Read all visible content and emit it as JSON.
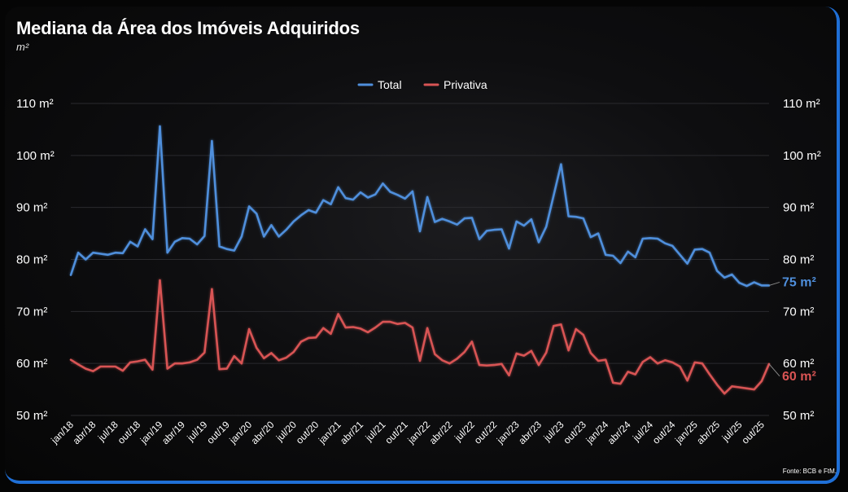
{
  "title": "Mediana da Área dos Imóveis Adquiridos",
  "subtitle": "m²",
  "source": "Fonte: BCB e FtM.",
  "chart_data": {
    "type": "line",
    "ylim": [
      50,
      110
    ],
    "y_ticks": [
      50,
      60,
      70,
      80,
      90,
      100,
      110
    ],
    "y_tick_suffix": " m²",
    "legend_position": "top-center",
    "x": [
      "jan/18",
      "fev/18",
      "mar/18",
      "abr/18",
      "mai/18",
      "jun/18",
      "jul/18",
      "ago/18",
      "set/18",
      "out/18",
      "nov/18",
      "dez/18",
      "jan/19",
      "fev/19",
      "mar/19",
      "abr/19",
      "mai/19",
      "jun/19",
      "jul/19",
      "ago/19",
      "set/19",
      "out/19",
      "nov/19",
      "dez/19",
      "jan/20",
      "fev/20",
      "mar/20",
      "abr/20",
      "mai/20",
      "jun/20",
      "jul/20",
      "ago/20",
      "set/20",
      "out/20",
      "nov/20",
      "dez/20",
      "jan/21",
      "fev/21",
      "mar/21",
      "abr/21",
      "mai/21",
      "jun/21",
      "jul/21",
      "ago/21",
      "set/21",
      "out/21",
      "nov/21",
      "dez/21",
      "jan/22",
      "fev/22",
      "mar/22",
      "abr/22",
      "mai/22",
      "jun/22",
      "jul/22",
      "ago/22",
      "set/22",
      "out/22",
      "nov/22",
      "dez/22",
      "jan/23",
      "fev/23",
      "mar/23",
      "abr/23",
      "mai/23",
      "jun/23",
      "jul/23",
      "ago/23",
      "set/23",
      "out/23",
      "nov/23",
      "dez/23",
      "jan/24",
      "fev/24",
      "mar/24",
      "abr/24",
      "mai/24",
      "jun/24",
      "jul/24",
      "ago/24",
      "set/24",
      "out/24",
      "nov/24",
      "dez/24",
      "jan/25",
      "fev/25",
      "mar/25",
      "abr/25",
      "mai/25",
      "jun/25",
      "jul/25",
      "ago/25",
      "set/25",
      "out/25",
      "nov/25"
    ],
    "x_tick_labels": [
      "jan/18",
      "abr/18",
      "jul/18",
      "out/18",
      "jan/19",
      "abr/19",
      "jul/19",
      "out/19",
      "jan/20",
      "abr/20",
      "jul/20",
      "out/20",
      "jan/21",
      "abr/21",
      "jul/21",
      "out/21",
      "jan/22",
      "abr/22",
      "jul/22",
      "out/22",
      "jan/23",
      "abr/23",
      "jul/23",
      "out/23",
      "jan/24",
      "abr/24",
      "jul/24",
      "out/24",
      "jan/25",
      "abr/25",
      "jul/25",
      "out/25"
    ],
    "series": [
      {
        "name": "Total",
        "color": "#4f8fdc",
        "end_label": "75 m²",
        "values": [
          77.0,
          81.3,
          80.0,
          81.3,
          81.1,
          80.9,
          81.3,
          81.2,
          83.4,
          82.5,
          85.8,
          83.9,
          105.6,
          81.3,
          83.4,
          84.1,
          84.0,
          82.9,
          84.5,
          102.8,
          82.5,
          82.0,
          81.7,
          84.4,
          90.2,
          88.8,
          84.4,
          86.6,
          84.4,
          85.7,
          87.3,
          88.5,
          89.5,
          89.0,
          91.4,
          90.6,
          93.9,
          91.8,
          91.5,
          92.9,
          91.9,
          92.5,
          94.6,
          93.0,
          92.4,
          91.7,
          93.1,
          85.4,
          92.0,
          87.2,
          87.8,
          87.3,
          86.7,
          87.9,
          88.0,
          83.9,
          85.5,
          85.7,
          85.8,
          82.1,
          87.3,
          86.5,
          87.7,
          83.3,
          86.3,
          92.3,
          98.3,
          88.3,
          88.2,
          87.9,
          84.3,
          85.0,
          80.9,
          80.7,
          79.3,
          81.5,
          80.4,
          84.0,
          84.1,
          84.0,
          83.1,
          82.6,
          80.9,
          79.2,
          81.9,
          82.0,
          81.3,
          77.8,
          76.5,
          77.1,
          75.5,
          74.9,
          75.6,
          75.0,
          75.0
        ]
      },
      {
        "name": "Privativa",
        "color": "#d85454",
        "end_label": "60 m²",
        "values": [
          60.7,
          59.8,
          59.0,
          58.5,
          59.4,
          59.4,
          59.4,
          58.6,
          60.2,
          60.4,
          60.7,
          58.8,
          76.0,
          59.0,
          60.0,
          60.0,
          60.2,
          60.7,
          62.1,
          74.3,
          58.9,
          59.0,
          61.4,
          60.0,
          66.6,
          63.0,
          61.0,
          62.0,
          60.6,
          61.1,
          62.2,
          64.2,
          64.9,
          65.0,
          66.8,
          65.7,
          69.5,
          66.9,
          67.0,
          66.7,
          66.0,
          66.9,
          68.0,
          68.0,
          67.6,
          67.8,
          66.9,
          60.5,
          66.8,
          61.8,
          60.6,
          60.0,
          60.9,
          62.2,
          64.2,
          59.7,
          59.6,
          59.7,
          59.9,
          57.7,
          61.9,
          61.5,
          62.4,
          59.7,
          62.1,
          67.2,
          67.5,
          62.5,
          66.6,
          65.5,
          62.0,
          60.5,
          60.7,
          56.3,
          56.1,
          58.4,
          57.9,
          60.3,
          61.2,
          60.0,
          60.6,
          60.2,
          59.4,
          56.7,
          60.2,
          60.0,
          57.9,
          55.9,
          54.2,
          55.6,
          55.4,
          55.2,
          55.0,
          56.6,
          59.9
        ]
      }
    ]
  }
}
